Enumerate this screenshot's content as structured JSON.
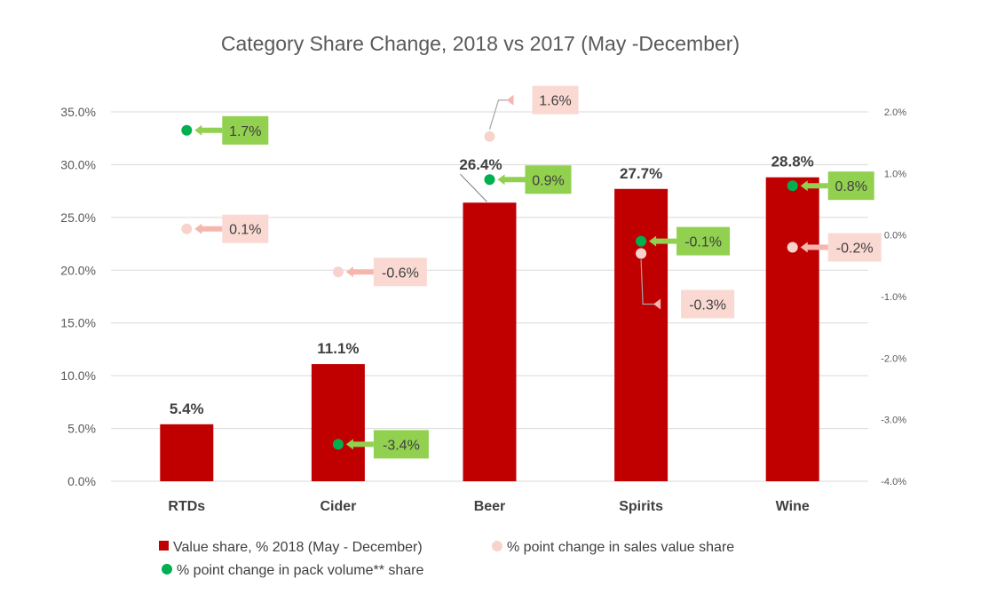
{
  "chart_data": {
    "type": "bar",
    "title": "Category Share Change, 2018 vs 2017 (May -December)",
    "categories": [
      "RTDs",
      "Cider",
      "Beer",
      "Spirits",
      "Wine"
    ],
    "y_left": {
      "min": 0,
      "max": 35,
      "step": 5,
      "tick_labels": [
        "0.0%",
        "5.0%",
        "10.0%",
        "15.0%",
        "20.0%",
        "25.0%",
        "30.0%",
        "35.0%"
      ]
    },
    "y_right": {
      "min": -4,
      "max": 2,
      "step": 1,
      "tick_labels": [
        "-4.0%",
        "-3.0%",
        "-2.0%",
        "-1.0%",
        "0.0%",
        "1.0%",
        "2.0%"
      ]
    },
    "grid": true,
    "legend_position": "bottom",
    "series": [
      {
        "name": "Value share, % 2018 (May - December)",
        "kind": "bar",
        "axis": "left",
        "color": "#c00000",
        "values": [
          5.4,
          11.1,
          26.4,
          27.7,
          28.8
        ],
        "labels": [
          "5.4%",
          "11.1%",
          "26.4%",
          "27.7%",
          "28.8%"
        ]
      },
      {
        "name": "% point change in sales value share",
        "kind": "marker",
        "axis": "right",
        "color": "#f8d3ce",
        "label_bg": "#fbd9d3",
        "values": [
          0.1,
          -0.6,
          1.6,
          -0.3,
          -0.2
        ],
        "labels": [
          "0.1%",
          "-0.6%",
          "1.6%",
          "-0.3%",
          "-0.2%"
        ]
      },
      {
        "name": "% point change in pack volume** share",
        "kind": "marker",
        "axis": "right",
        "color": "#00b050",
        "label_bg": "#92d050",
        "values": [
          1.7,
          -3.4,
          0.9,
          -0.1,
          0.8
        ],
        "labels": [
          "1.7%",
          "-3.4%",
          "0.9%",
          "-0.1%",
          "0.8%"
        ]
      }
    ]
  }
}
